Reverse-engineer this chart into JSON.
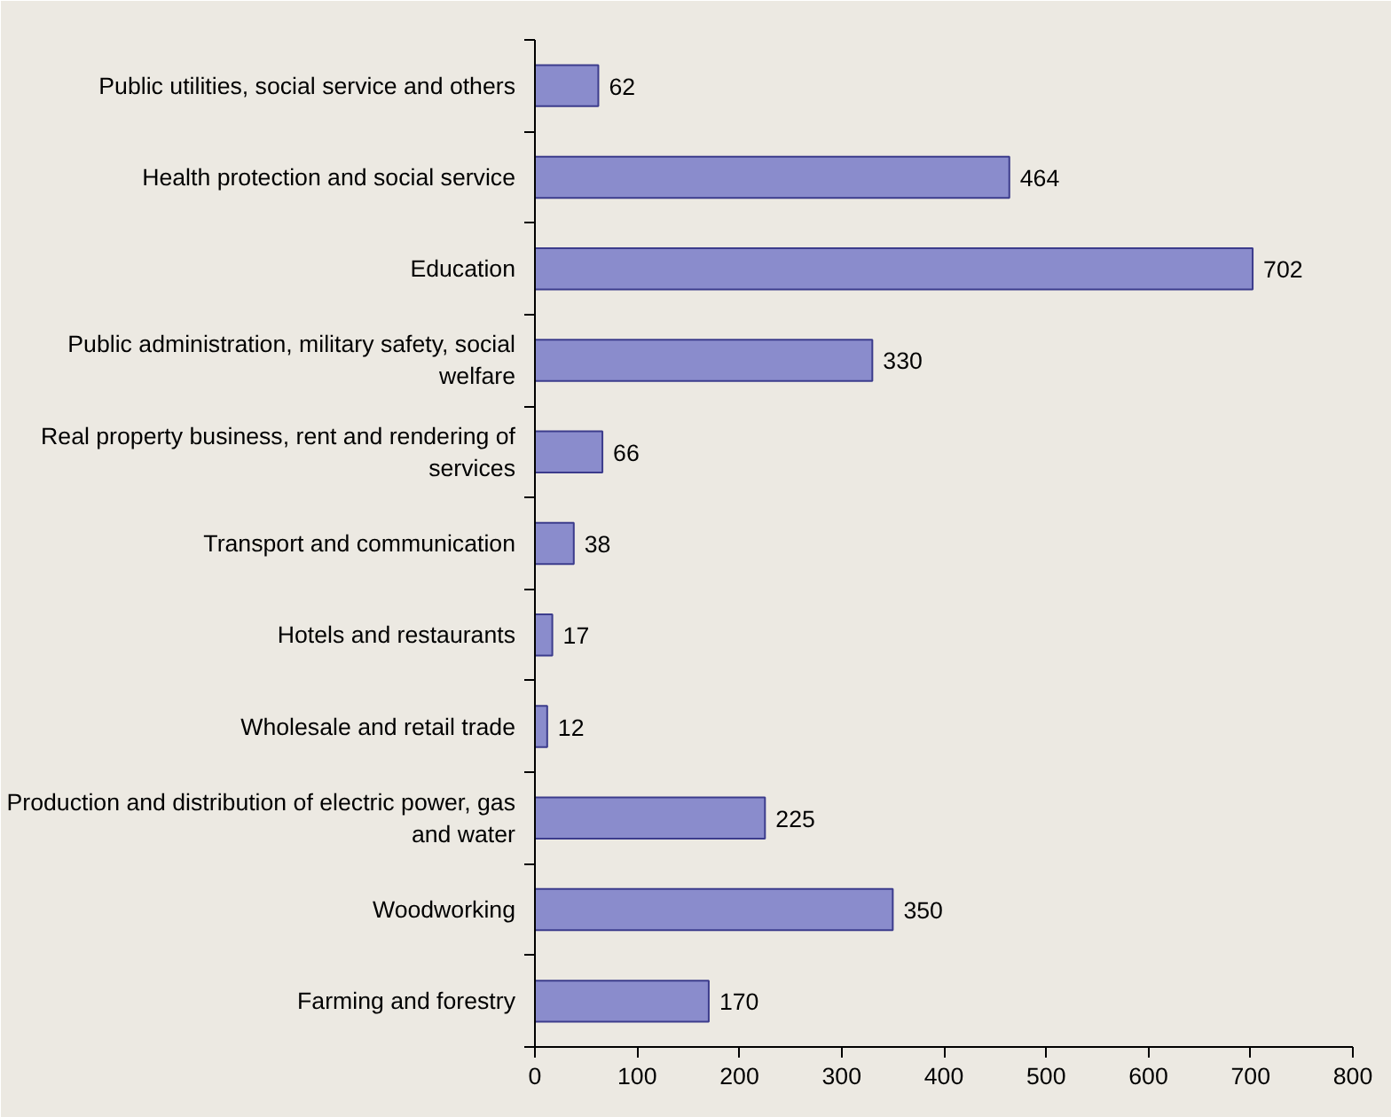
{
  "chart_data": {
    "type": "bar",
    "orientation": "horizontal",
    "categories": [
      "Public utilities, social service and others",
      "Health protection and social service",
      "Education",
      "Public administration, military safety, social welfare",
      "Real property business, rent and rendering of services",
      "Transport and communication",
      "Hotels and restaurants",
      "Wholesale and retail trade",
      "Production and distribution of electric power, gas and water",
      "Woodworking",
      "Farming and forestry"
    ],
    "values": [
      62,
      464,
      702,
      330,
      66,
      38,
      17,
      12,
      225,
      350,
      170
    ],
    "color": "#8a8ccc",
    "xlim": [
      0,
      800
    ],
    "xticks": [
      0,
      100,
      200,
      300,
      400,
      500,
      600,
      700,
      800
    ],
    "grid": false,
    "data_labels": true
  }
}
